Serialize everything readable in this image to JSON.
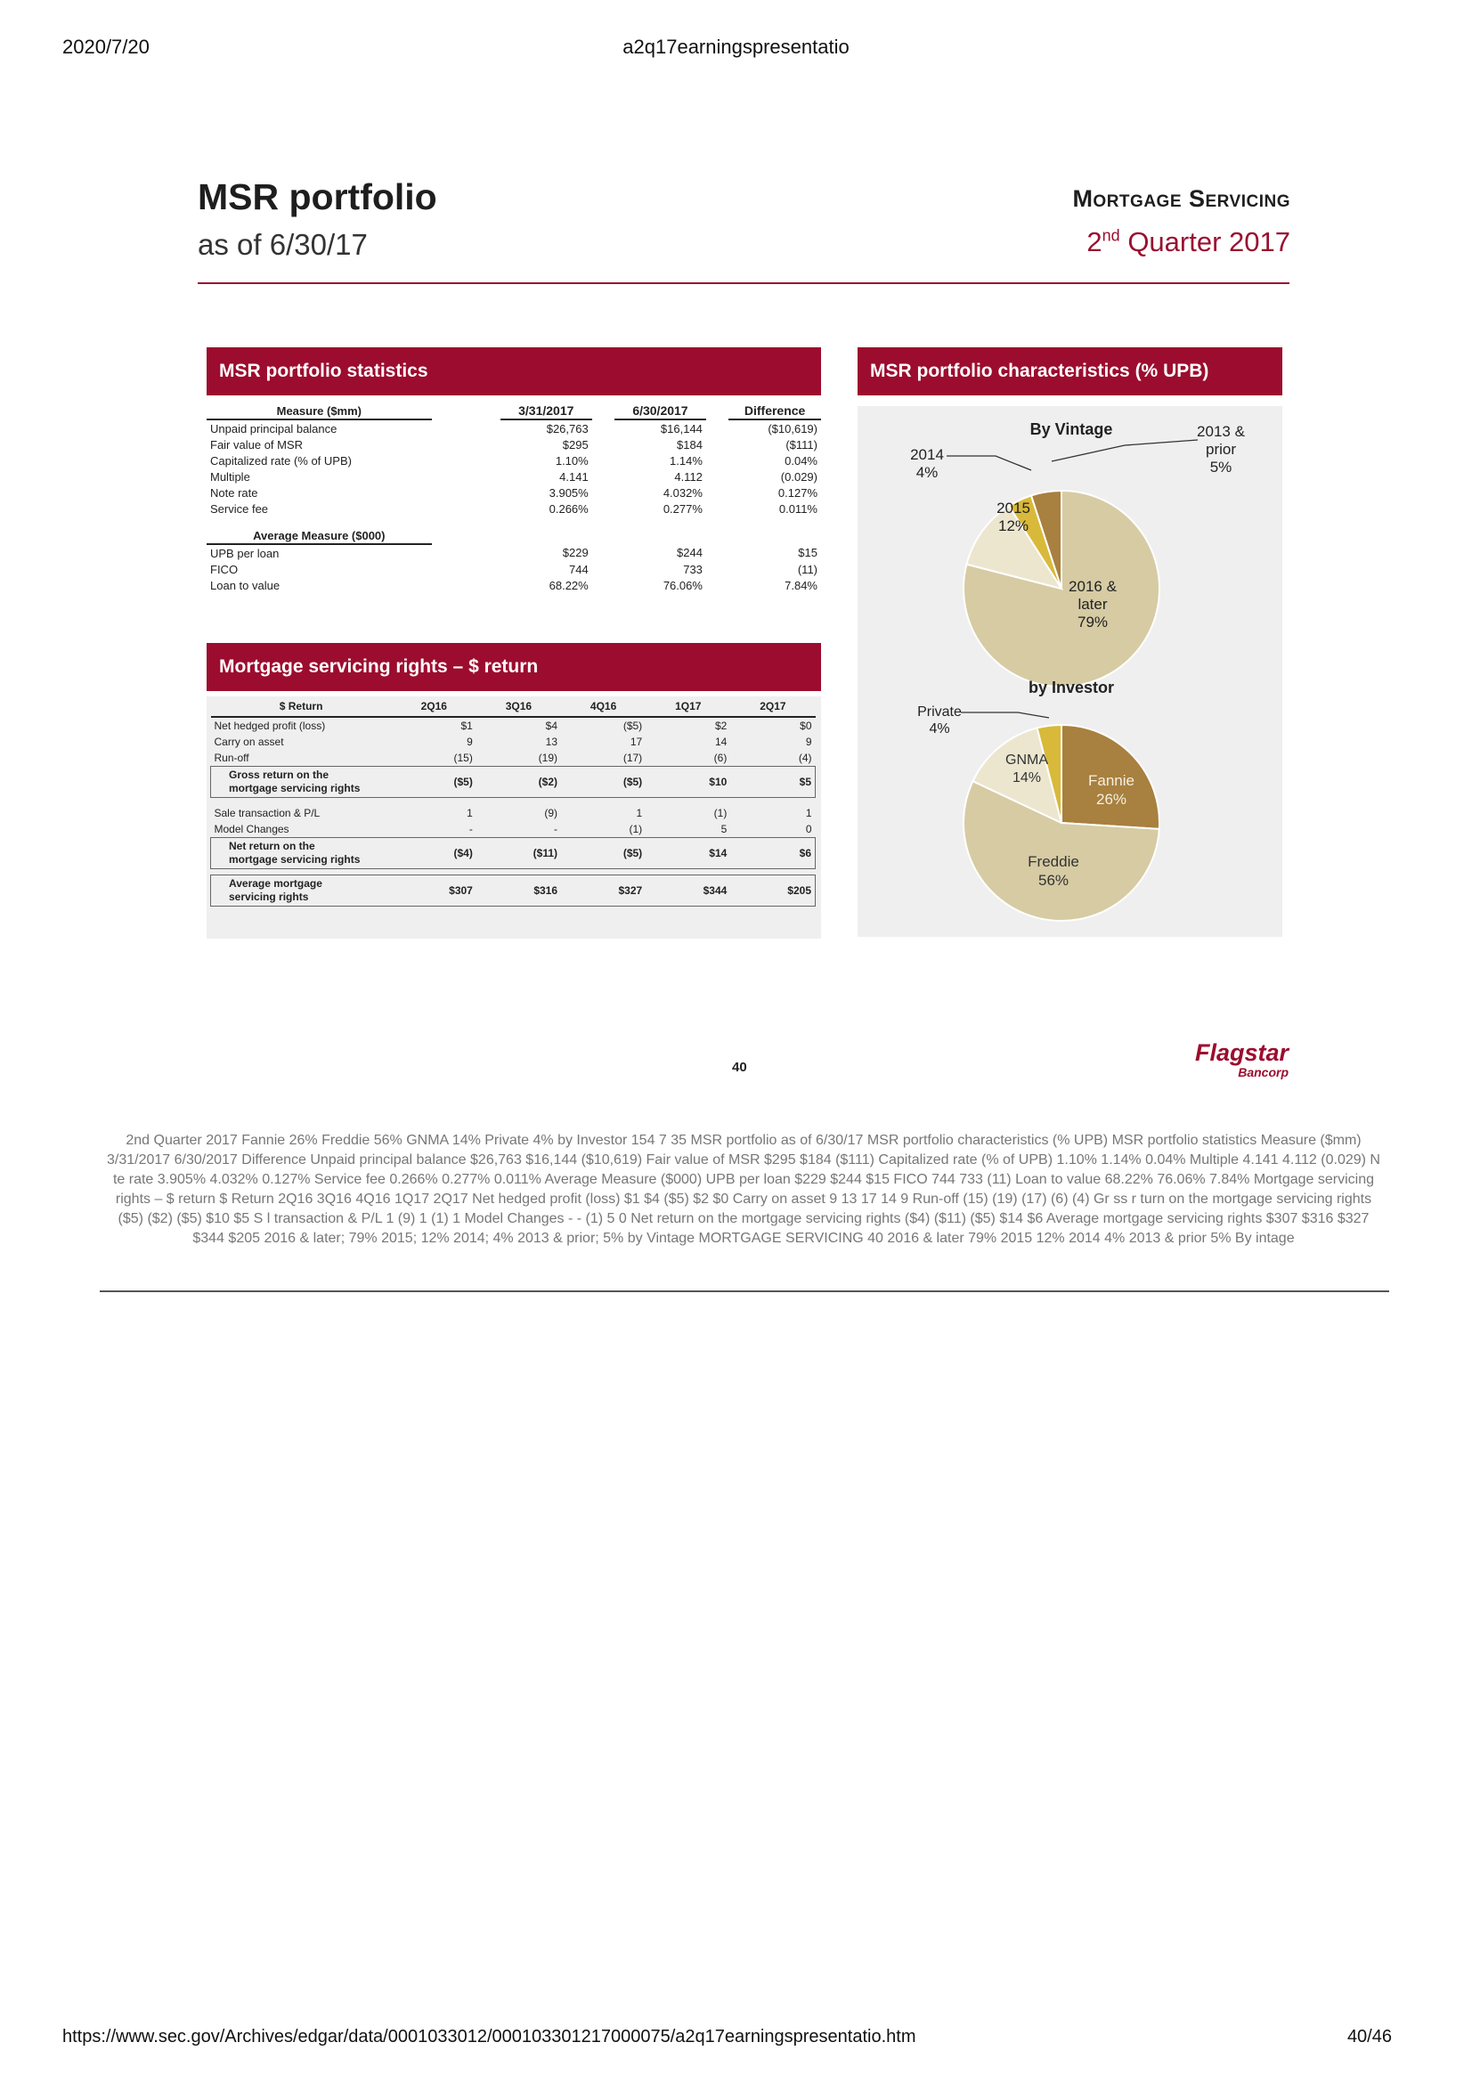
{
  "browser": {
    "date": "2020/7/20",
    "doc_title": "a2q17earningspresentatio",
    "url": "https://www.sec.gov/Archives/edgar/data/0001033012/000103301217000075/a2q17earningspresentatio.htm",
    "page": "40/46"
  },
  "slide": {
    "title": "MSR portfolio",
    "subtitle": "as of 6/30/17",
    "section_label": "Mortgage Servicing",
    "quarter_text": "2",
    "quarter_sup": "nd",
    "quarter_rest": " Quarter 2017",
    "page_number": "40",
    "logo_name": "Flagstar",
    "logo_sub": "Bancorp",
    "accent_color": "#9c0c2e"
  },
  "stats": {
    "banner": "MSR portfolio statistics",
    "headers": [
      "Measure ($mm)",
      "3/31/2017",
      "6/30/2017",
      "Difference"
    ],
    "rows": [
      [
        "Unpaid principal balance",
        "$26,763",
        "$16,144",
        "($10,619)"
      ],
      [
        "Fair value of MSR",
        "$295",
        "$184",
        "($111)"
      ],
      [
        "Capitalized rate (% of UPB)",
        "1.10%",
        "1.14%",
        "0.04%"
      ],
      [
        "Multiple",
        "4.141",
        "4.112",
        "(0.029)"
      ],
      [
        "Note rate",
        "3.905%",
        "4.032%",
        "0.127%"
      ],
      [
        "Service fee",
        "0.266%",
        "0.277%",
        "0.011%"
      ]
    ],
    "avg_header": "Average Measure ($000)",
    "avg_rows": [
      [
        "UPB per loan",
        "$229",
        "$244",
        "$15"
      ],
      [
        "FICO",
        "744",
        "733",
        "(11)"
      ],
      [
        "Loan to value",
        "68.22%",
        "76.06%",
        "7.84%"
      ]
    ]
  },
  "returns": {
    "banner": "Mortgage servicing rights – $ return",
    "headers": [
      "$ Return",
      "2Q16",
      "3Q16",
      "4Q16",
      "1Q17",
      "2Q17"
    ],
    "rows1": [
      [
        "Net hedged profit (loss)",
        "$1",
        "$4",
        "($5)",
        "$2",
        "$0"
      ],
      [
        "Carry on asset",
        "9",
        "13",
        "17",
        "14",
        "9"
      ],
      [
        "Run-off",
        "(15)",
        "(19)",
        "(17)",
        "(6)",
        "(4)"
      ]
    ],
    "gross": [
      "Gross return on the",
      "mortgage servicing rights",
      "($5)",
      "($2)",
      "($5)",
      "$10",
      "$5"
    ],
    "rows2": [
      [
        "Sale transaction & P/L",
        "1",
        "(9)",
        "1",
        "(1)",
        "1"
      ],
      [
        "Model Changes",
        "-",
        "-",
        "(1)",
        "5",
        "0"
      ]
    ],
    "net": [
      "Net return on the",
      "mortgage servicing rights",
      "($4)",
      "($11)",
      "($5)",
      "$14",
      "$6"
    ],
    "avg": [
      "Average mortgage",
      "servicing rights",
      "$307",
      "$316",
      "$327",
      "$344",
      "$205"
    ]
  },
  "characteristics": {
    "banner": "MSR portfolio characteristics (% UPB)",
    "chart_data": [
      {
        "type": "pie",
        "title": "By Vintage",
        "categories": [
          "2016 & later",
          "2015",
          "2014",
          "2013 & prior"
        ],
        "values": [
          79,
          12,
          4,
          5
        ],
        "value_labels": [
          "79%",
          "12%",
          "4%",
          "5%"
        ],
        "label_lines": [
          [
            "2016 &",
            "later",
            "79%"
          ],
          [
            "2015",
            "12%"
          ],
          [
            "2014",
            "4%"
          ],
          [
            "2013 &",
            "prior",
            "5%"
          ]
        ],
        "colors": [
          "#d6cba3",
          "#ece6cf",
          "#d9b93a",
          "#a8803f"
        ]
      },
      {
        "type": "pie",
        "title": "by Investor",
        "categories": [
          "Fannie",
          "Freddie",
          "GNMA",
          "Private"
        ],
        "values": [
          26,
          56,
          14,
          4
        ],
        "value_labels": [
          "26%",
          "56%",
          "14%",
          "4%"
        ],
        "colors": [
          "#a8803f",
          "#d6cba3",
          "#ece6cf",
          "#d9b93a"
        ]
      }
    ]
  },
  "footer_text": "2nd Quarter 2017 Fannie 26% Freddie 56% GNMA 14% Private 4% by Investor 154 7 35 MSR portfolio as of 6/30/17 MSR portfolio characteristics (% UPB) MSR portfolio statistics Measure ($mm) 3/31/2017 6/30/2017 Difference Unpaid principal balance $26,763 $16,144 ($10,619) Fair value of MSR $295 $184 ($111) Capitalized rate (% of UPB) 1.10% 1.14% 0.04% Multiple 4.141 4.112 (0.029) N te rate 3.905% 4.032% 0.127% Service fee 0.266% 0.277% 0.011% Average Measure ($000) UPB per loan $229 $244 $15 FICO 744 733 (11) Loan to value 68.22% 76.06% 7.84% Mortgage servicing rights – $ return $ Return 2Q16 3Q16 4Q16 1Q17 2Q17 Net hedged profit (loss) $1 $4 ($5) $2 $0 Carry on asset 9 13 17 14 9 Run-off (15) (19) (17) (6) (4) Gr ss r turn on the mortgage servicing rights ($5) ($2) ($5) $10 $5 S l transaction & P/L 1 (9) 1 (1) 1 Model Changes - - (1) 5 0 Net return on the mortgage servicing rights ($4) ($11) ($5) $14 $6 Average mortgage servicing rights $307 $316 $327 $344 $205 2016 & later; 79% 2015; 12% 2014; 4% 2013 & prior; 5% by Vintage MORTGAGE SERVICING 40 2016 & later 79% 2015 12% 2014 4% 2013 & prior 5% By intage"
}
